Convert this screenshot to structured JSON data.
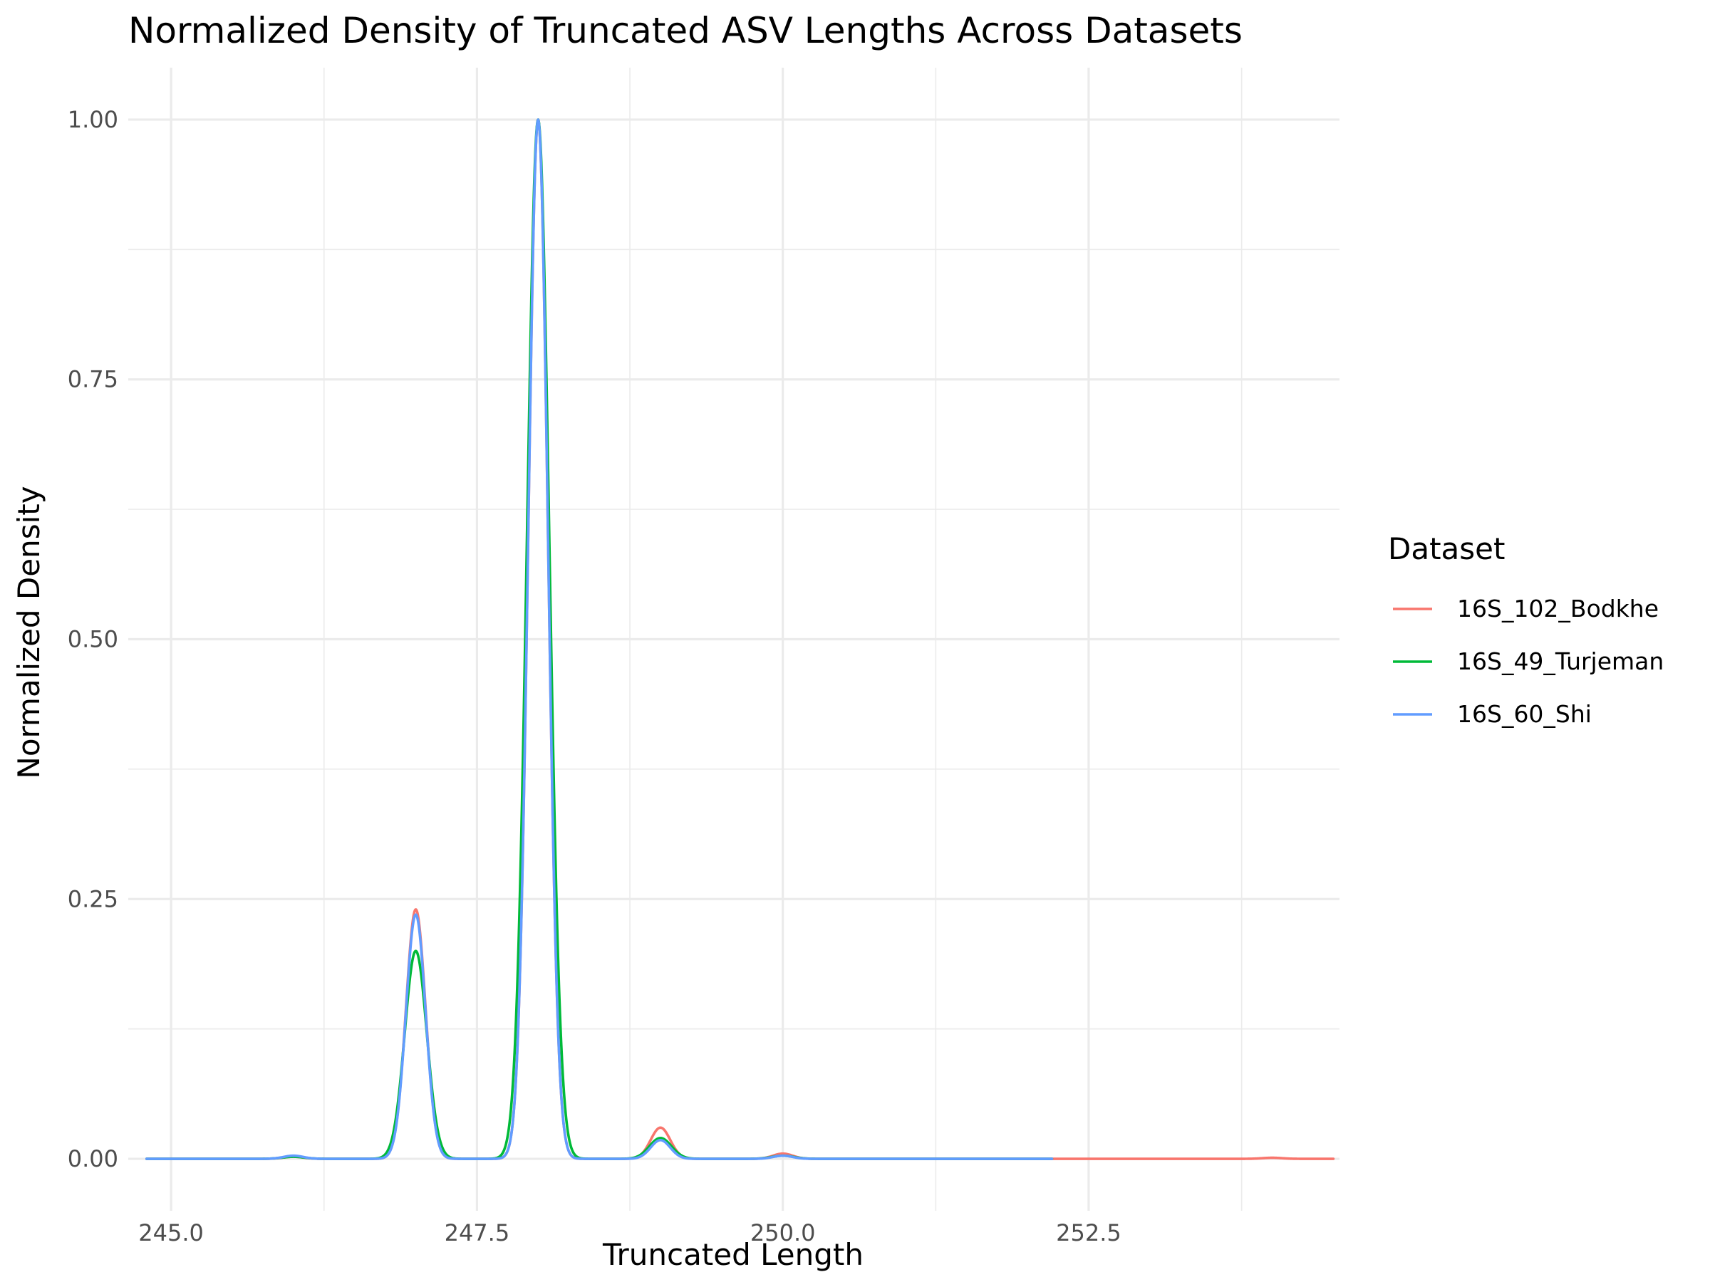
{
  "chart_data": {
    "type": "line",
    "title": "Normalized Density of Truncated ASV Lengths Across Datasets",
    "xlabel": "Truncated Length",
    "ylabel": "Normalized Density",
    "xlim": [
      244.65,
      254.55
    ],
    "ylim": [
      -0.05,
      1.05
    ],
    "x_ticks": [
      245.0,
      247.5,
      250.0,
      252.5
    ],
    "x_tick_labels": [
      "245.0",
      "247.5",
      "250.0",
      "252.5"
    ],
    "y_ticks": [
      0.0,
      0.25,
      0.5,
      0.75,
      1.0
    ],
    "y_tick_labels": [
      "0.00",
      "0.25",
      "0.50",
      "0.75",
      "1.00"
    ],
    "grid": true,
    "legend": {
      "title": "Dataset",
      "position": "right"
    },
    "series": [
      {
        "name": "16S_102_Bodkhe",
        "color": "#F8766D",
        "x_range": [
          244.8,
          254.5
        ],
        "peaks": [
          {
            "x": 246.0,
            "height": 0.002,
            "width": 0.08
          },
          {
            "x": 247.0,
            "height": 0.24,
            "width": 0.08
          },
          {
            "x": 248.0,
            "height": 1.0,
            "width": 0.08
          },
          {
            "x": 249.0,
            "height": 0.03,
            "width": 0.08
          },
          {
            "x": 250.0,
            "height": 0.005,
            "width": 0.08
          },
          {
            "x": 254.0,
            "height": 0.001,
            "width": 0.08
          }
        ]
      },
      {
        "name": "16S_49_Turjeman",
        "color": "#00BA38",
        "x_range": [
          244.8,
          252.2
        ],
        "peaks": [
          {
            "x": 246.0,
            "height": 0.002,
            "width": 0.09
          },
          {
            "x": 247.0,
            "height": 0.2,
            "width": 0.09
          },
          {
            "x": 248.0,
            "height": 1.0,
            "width": 0.09
          },
          {
            "x": 249.0,
            "height": 0.02,
            "width": 0.09
          },
          {
            "x": 250.0,
            "height": 0.003,
            "width": 0.09
          }
        ]
      },
      {
        "name": "16S_60_Shi",
        "color": "#619CFF",
        "x_range": [
          244.8,
          252.2
        ],
        "peaks": [
          {
            "x": 246.0,
            "height": 0.003,
            "width": 0.08
          },
          {
            "x": 247.0,
            "height": 0.235,
            "width": 0.08
          },
          {
            "x": 248.0,
            "height": 1.0,
            "width": 0.08
          },
          {
            "x": 249.0,
            "height": 0.018,
            "width": 0.08
          },
          {
            "x": 250.0,
            "height": 0.003,
            "width": 0.08
          }
        ]
      }
    ]
  }
}
